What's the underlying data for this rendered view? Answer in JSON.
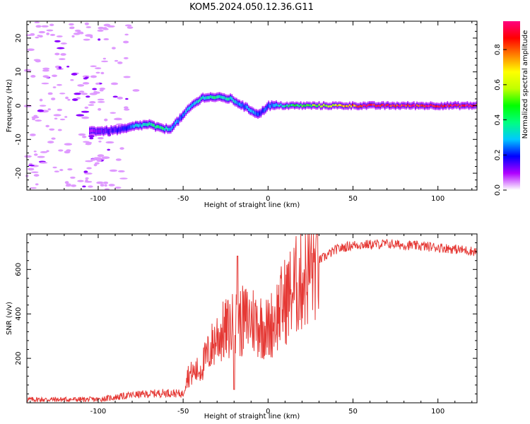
{
  "title": "KOM5.2024.050.12.36.G11",
  "chart_data": [
    {
      "type": "heatmap",
      "xlabel": "Height of straight line (km)",
      "ylabel": "Frequency (Hz)",
      "xlim": [
        -142,
        123
      ],
      "ylim": [
        -25,
        25
      ],
      "x_ticks": [
        -100,
        -50,
        0,
        50,
        100
      ],
      "y_ticks": [
        -20,
        -10,
        0,
        10,
        20
      ],
      "colorbar": {
        "label": "Normalized spectral amplitude",
        "range": [
          0,
          1
        ],
        "ticks": [
          "0.0",
          "0.2",
          "0.4",
          "0.6",
          "0.8"
        ],
        "colors": [
          "#ffffff",
          "#b000ff",
          "#0000ff",
          "#00c8ff",
          "#00ff80",
          "#00ff00",
          "#c0ff00",
          "#ffff00",
          "#ff8000",
          "#ff0000",
          "#ff0080"
        ]
      },
      "ridge": {
        "x": [
          -105,
          -95,
          -85,
          -78,
          -70,
          -65,
          -58,
          -52,
          -45,
          -38,
          -30,
          -22,
          -15,
          -8,
          -5,
          0,
          10,
          30,
          60,
          123
        ],
        "frequency": [
          -7.5,
          -7.5,
          -7.0,
          -6.0,
          -5.5,
          -6.5,
          -7.0,
          -4.0,
          0.0,
          2.5,
          2.5,
          2.0,
          0.0,
          -2.0,
          -2.5,
          0.0,
          0.0,
          0.0,
          0.0,
          0.0
        ],
        "amplitude": [
          0.1,
          0.15,
          0.2,
          0.3,
          0.35,
          0.45,
          0.3,
          0.25,
          0.3,
          0.35,
          0.4,
          0.35,
          0.25,
          0.3,
          0.2,
          0.25,
          0.4,
          0.55,
          0.95,
          0.95
        ]
      },
      "noise": {
        "x_range": [
          -142,
          -95
        ],
        "frequency_range": [
          -25,
          25
        ],
        "amplitude": 0.05
      }
    },
    {
      "type": "line",
      "xlabel": "Height of straight line (km)",
      "ylabel": "SNR (v/v)",
      "xlim": [
        -142,
        123
      ],
      "ylim": [
        0,
        760
      ],
      "x_ticks": [
        -100,
        -50,
        0,
        50,
        100
      ],
      "y_ticks": [
        200,
        400,
        600
      ],
      "color": "#e53935",
      "envelope": {
        "x": [
          -142,
          -100,
          -80,
          -60,
          -50,
          -48,
          -40,
          -30,
          -20,
          -10,
          0,
          10,
          20,
          25,
          30,
          40,
          50,
          70,
          100,
          123
        ],
        "snr": [
          15,
          15,
          35,
          45,
          40,
          120,
          150,
          300,
          350,
          380,
          330,
          460,
          560,
          610,
          640,
          690,
          710,
          715,
          700,
          680
        ]
      },
      "spikes": [
        {
          "x": -20,
          "snr": 760
        },
        {
          "x": -18,
          "snr": 660
        },
        {
          "x": -20,
          "snr": 60
        }
      ]
    }
  ]
}
